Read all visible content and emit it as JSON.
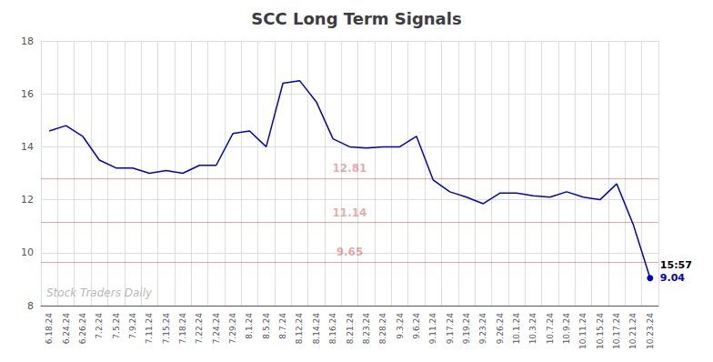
{
  "chart_data": {
    "type": "line",
    "title": "SCC Long Term Signals",
    "categories": [
      "6.18.24",
      "6.24.24",
      "6.26.24",
      "7.2.24",
      "7.5.24",
      "7.9.24",
      "7.11.24",
      "7.15.24",
      "7.18.24",
      "7.22.24",
      "7.24.24",
      "7.29.24",
      "8.1.24",
      "8.5.24",
      "8.7.24",
      "8.12.24",
      "8.14.24",
      "8.16.24",
      "8.21.24",
      "8.23.24",
      "8.28.24",
      "9.3.24",
      "9.6.24",
      "9.11.24",
      "9.17.24",
      "9.19.24",
      "9.23.24",
      "9.26.24",
      "10.1.24",
      "10.3.24",
      "10.7.24",
      "10.9.24",
      "10.11.24",
      "10.15.24",
      "10.17.24",
      "10.21.24",
      "10.23.24"
    ],
    "values": [
      14.6,
      14.8,
      14.4,
      13.5,
      13.2,
      13.2,
      13.0,
      13.1,
      13.0,
      13.3,
      13.3,
      14.5,
      14.6,
      14.0,
      16.4,
      16.5,
      15.7,
      14.3,
      14.0,
      13.95,
      14.0,
      14.0,
      14.4,
      12.75,
      12.3,
      12.1,
      11.85,
      12.25,
      12.25,
      12.15,
      12.1,
      12.3,
      12.1,
      12.0,
      12.6,
      11.05,
      9.04
    ],
    "color": "#0000cc",
    "hlines": [
      {
        "y": 12.81,
        "label": "12.81",
        "color": "#cc0000"
      },
      {
        "y": 11.14,
        "label": "11.14",
        "color": "#cc0000"
      },
      {
        "y": 9.65,
        "label": "9.65",
        "color": "#cc0000"
      }
    ],
    "annotations": [
      {
        "text": "15:57",
        "x": "10.23.24",
        "y": 9.04
      },
      {
        "text": "9.04",
        "x": "10.23.24",
        "y": 9.04,
        "color": "#0000cc"
      },
      {
        "text": "Stock Traders Daily"
      }
    ],
    "ylim": [
      8,
      18
    ],
    "yticks": [
      8,
      10,
      12,
      14,
      16,
      18
    ],
    "grid": true
  }
}
